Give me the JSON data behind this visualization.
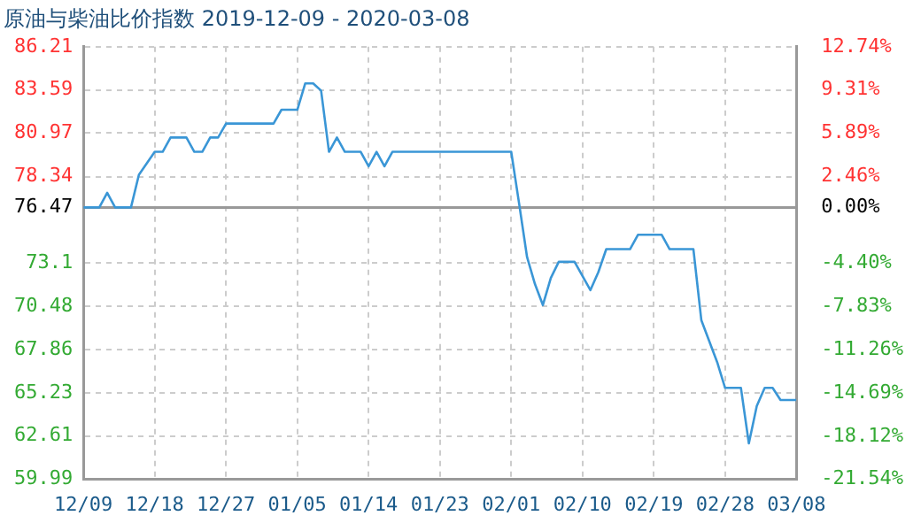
{
  "chart_data": {
    "type": "line",
    "title": "原油与柴油比价指数 2019-12-09 - 2020-03-08",
    "x": [
      "2019-12-09",
      "2019-12-11",
      "2019-12-12",
      "2019-12-13",
      "2019-12-15",
      "2019-12-16",
      "2019-12-18",
      "2019-12-19",
      "2019-12-20",
      "2019-12-22",
      "2019-12-23",
      "2019-12-24",
      "2019-12-25",
      "2019-12-26",
      "2019-12-27",
      "2020-01-02",
      "2020-01-03",
      "2020-01-05",
      "2020-01-06",
      "2020-01-07",
      "2020-01-08",
      "2020-01-09",
      "2020-01-10",
      "2020-01-11",
      "2020-01-13",
      "2020-01-14",
      "2020-01-15",
      "2020-01-16",
      "2020-01-17",
      "2020-02-01",
      "2020-02-02",
      "2020-02-03",
      "2020-02-04",
      "2020-02-05",
      "2020-02-06",
      "2020-02-07",
      "2020-02-09",
      "2020-02-11",
      "2020-02-12",
      "2020-02-13",
      "2020-02-16",
      "2020-02-17",
      "2020-02-20",
      "2020-02-21",
      "2020-02-24",
      "2020-02-25",
      "2020-02-27",
      "2020-02-28",
      "2020-03-01",
      "2020-03-02",
      "2020-03-03",
      "2020-03-04",
      "2020-03-05",
      "2020-03-06",
      "2020-03-08"
    ],
    "series": [
      {
        "color": "#3a96d6",
        "values": [
          76.47,
          76.47,
          77.36,
          76.47,
          76.47,
          78.45,
          79.84,
          79.84,
          80.71,
          80.71,
          79.84,
          79.84,
          80.71,
          80.71,
          81.55,
          81.55,
          82.39,
          82.39,
          83.99,
          83.99,
          83.55,
          79.84,
          80.71,
          79.84,
          79.84,
          78.97,
          79.84,
          78.97,
          79.84,
          79.84,
          76.7,
          73.46,
          71.82,
          70.55,
          72.19,
          73.17,
          73.17,
          71.46,
          72.55,
          73.94,
          73.94,
          74.81,
          74.81,
          73.94,
          73.94,
          69.64,
          67.09,
          65.53,
          65.53,
          62.17,
          64.43,
          65.53,
          65.53,
          64.8,
          64.8
        ]
      }
    ],
    "xlim": [
      "2019-12-09",
      "2020-03-08"
    ],
    "xticks": [
      {
        "value": "2019-12-09",
        "label": "12/09"
      },
      {
        "value": "2019-12-18",
        "label": "12/18"
      },
      {
        "value": "2019-12-27",
        "label": "12/27"
      },
      {
        "value": "2020-01-05",
        "label": "01/05"
      },
      {
        "value": "2020-01-14",
        "label": "01/14"
      },
      {
        "value": "2020-01-23",
        "label": "01/23"
      },
      {
        "value": "2020-02-01",
        "label": "02/01"
      },
      {
        "value": "2020-02-10",
        "label": "02/10"
      },
      {
        "value": "2020-02-19",
        "label": "02/19"
      },
      {
        "value": "2020-02-28",
        "label": "02/28"
      },
      {
        "value": "2020-03-08",
        "label": "03/08"
      }
    ],
    "ylim": [
      59.99,
      86.21
    ],
    "yticks": [
      59.99,
      62.61,
      65.23,
      67.86,
      70.48,
      73.1,
      76.47,
      78.34,
      80.97,
      83.59,
      86.21
    ],
    "y2lim": [
      -21.54,
      12.74
    ],
    "y2ticks": [
      {
        "value": -21.54,
        "label": "-21.54%"
      },
      {
        "value": -18.12,
        "label": "-18.12%"
      },
      {
        "value": -14.69,
        "label": "-14.69%"
      },
      {
        "value": -11.26,
        "label": "-11.26%"
      },
      {
        "value": -7.83,
        "label": "-7.83%"
      },
      {
        "value": -4.4,
        "label": "-4.40%"
      },
      {
        "value": 0,
        "label": "0.00%"
      },
      {
        "value": 2.46,
        "label": "2.46%"
      },
      {
        "value": 5.89,
        "label": "5.89%"
      },
      {
        "value": 9.31,
        "label": "9.31%"
      },
      {
        "value": 12.74,
        "label": "12.74%"
      }
    ],
    "ref_lines": [
      {
        "axis": "y",
        "value": 76.47,
        "color": "#999999"
      }
    ],
    "grid": true,
    "legend": false,
    "marker": "none",
    "line_style": "solid"
  }
}
